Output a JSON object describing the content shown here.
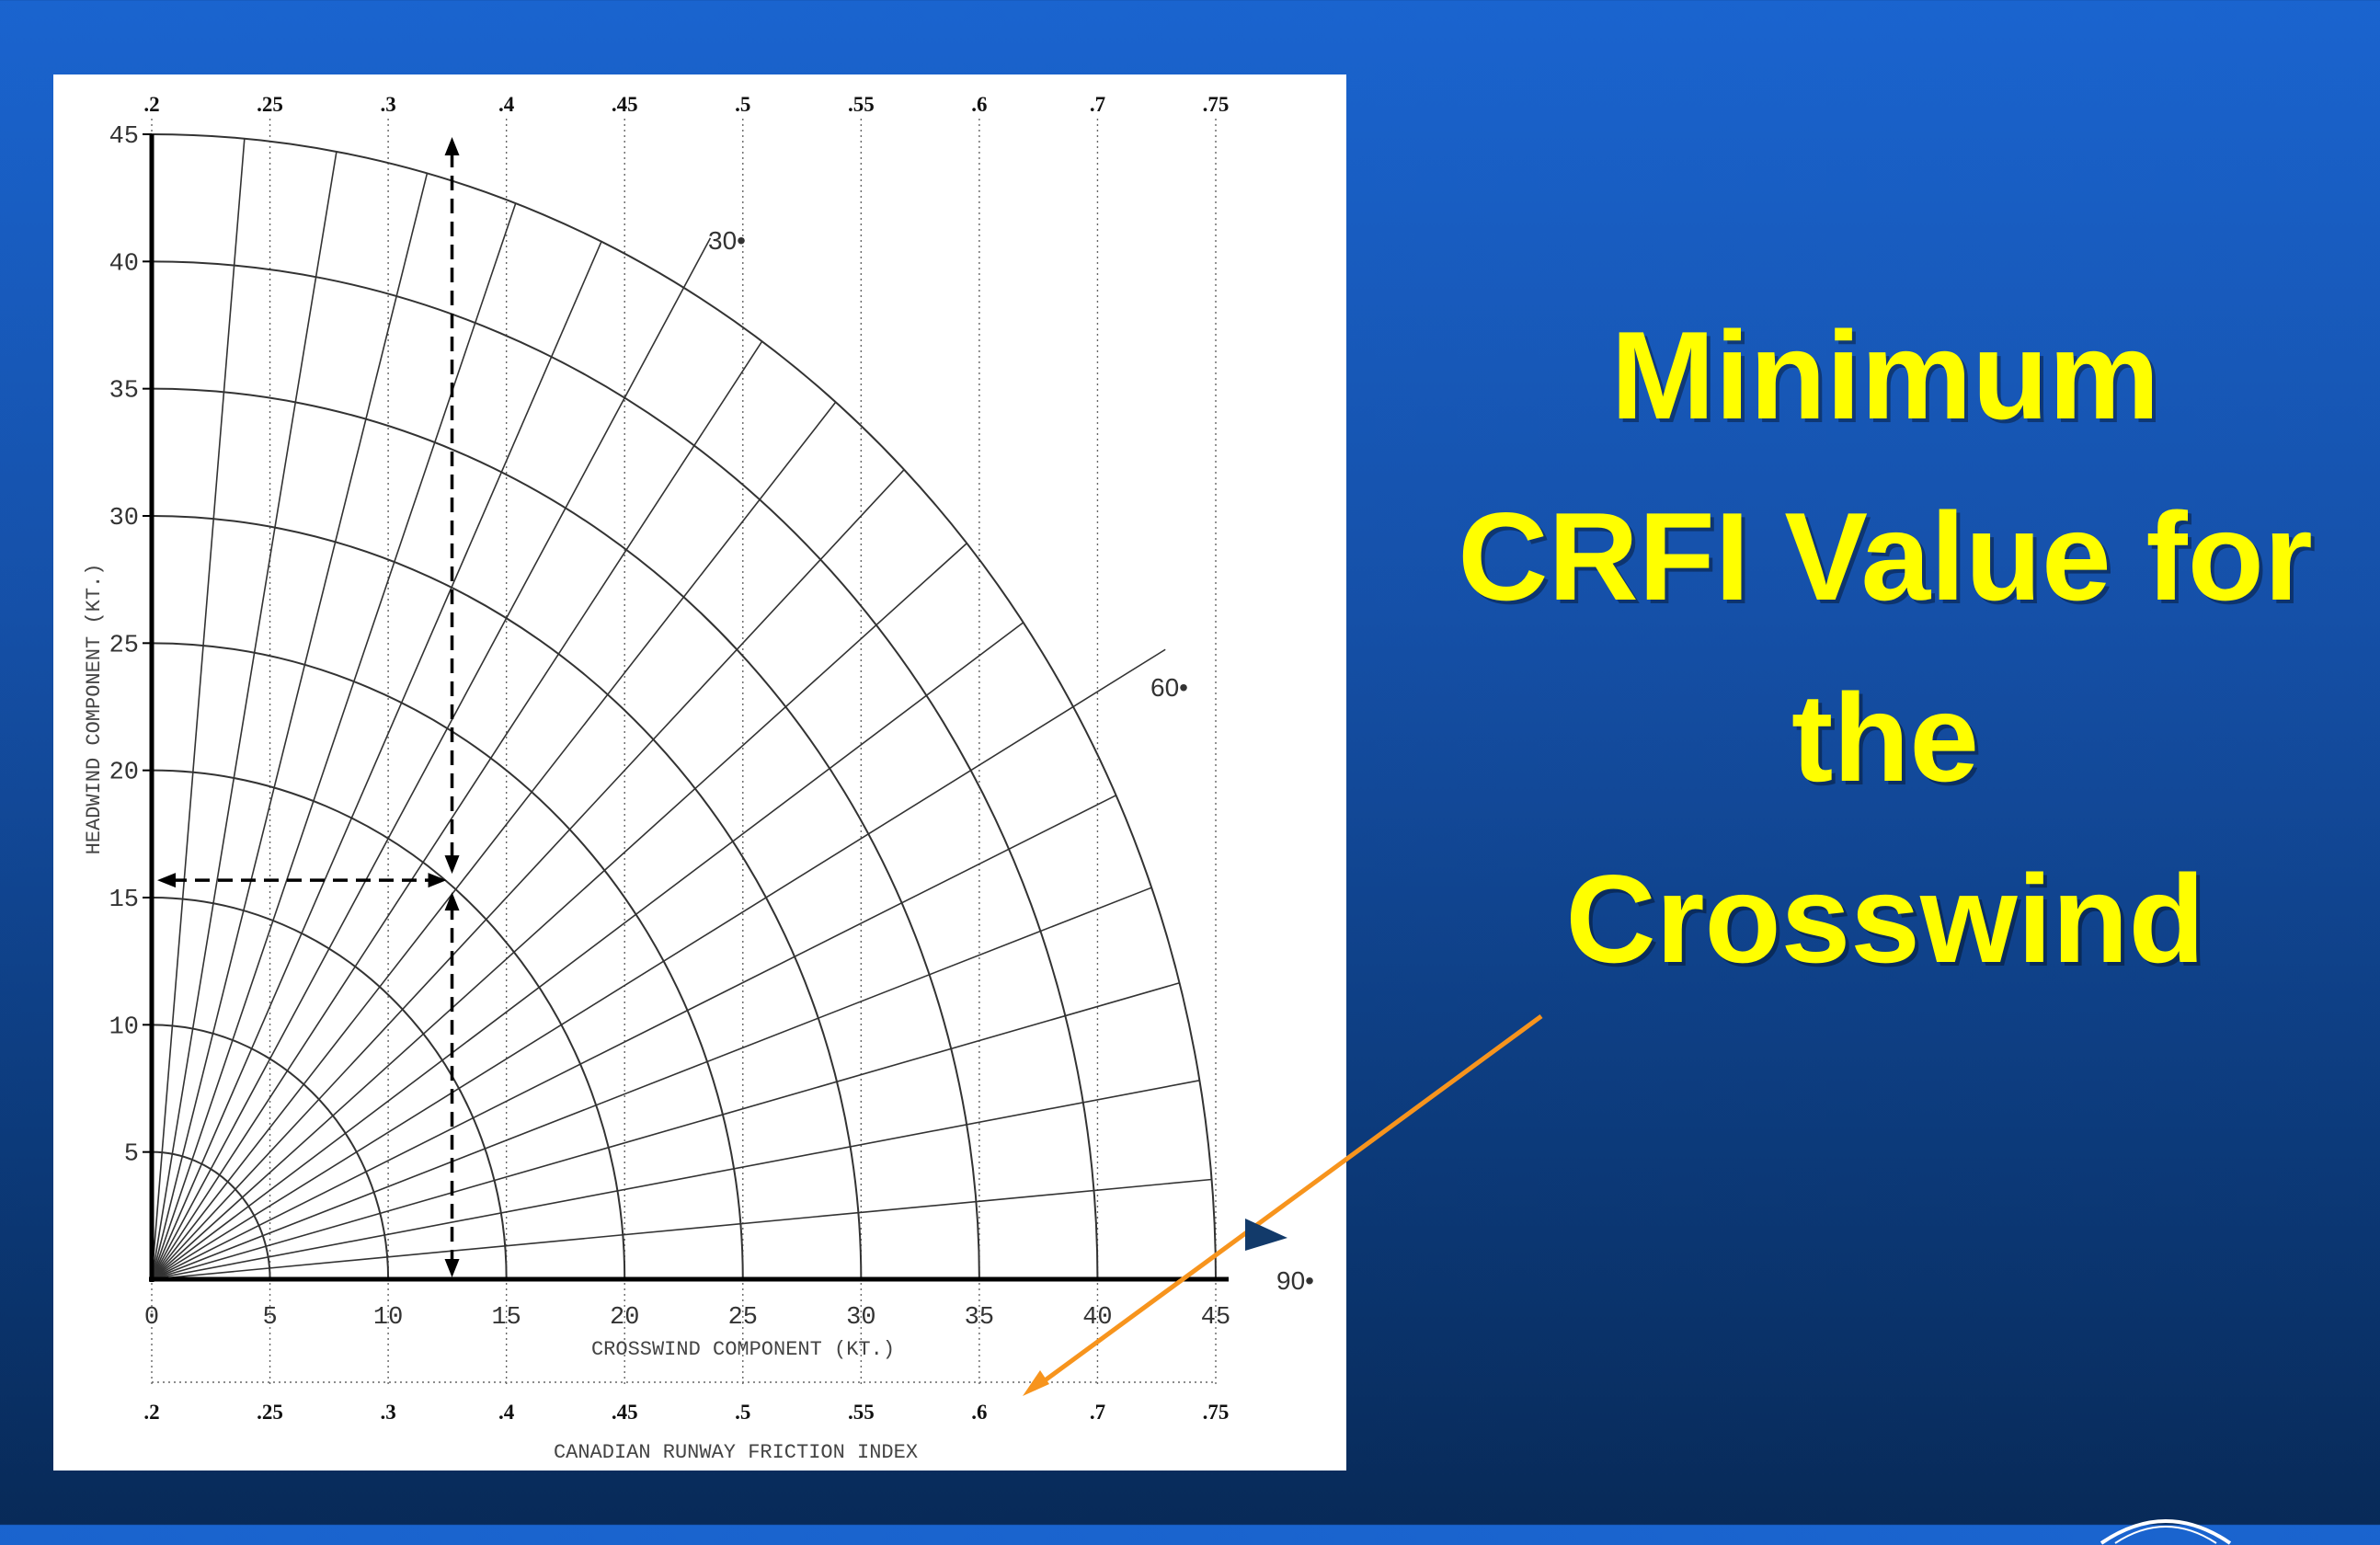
{
  "slide": {
    "title_lines": [
      "Minimum",
      "CRFI Value for",
      "the",
      "Crosswind"
    ],
    "title_color": "#ffff00",
    "arrow_color": "#f7941d",
    "marker_color": "#123a6a"
  },
  "chart_data": {
    "type": "crosswind-polar-chart",
    "xlabel": "CROSSWIND COMPONENT (KT.)",
    "ylabel": "HEADWIND COMPONENT (KT.)",
    "secondary_xlabel": "CANADIAN RUNWAY FRICTION INDEX",
    "x_ticks": [
      0,
      5,
      10,
      15,
      20,
      25,
      30,
      35,
      40,
      45
    ],
    "y_ticks": [
      5,
      10,
      15,
      20,
      25,
      30,
      35,
      40,
      45
    ],
    "xlim": [
      0,
      45
    ],
    "ylim": [
      0,
      45
    ],
    "crfi_labels": [
      ".2",
      ".25",
      ".3",
      ".4",
      ".45",
      ".5",
      ".55",
      ".6",
      ".7",
      ".75"
    ],
    "crfi_values": [
      0.2,
      0.25,
      0.3,
      0.4,
      0.45,
      0.5,
      0.55,
      0.6,
      0.7,
      0.75
    ],
    "crfi_positions_kt": [
      0,
      5,
      10,
      15,
      20,
      25,
      30,
      35,
      40,
      45
    ],
    "wind_speed_arcs_kt": [
      5,
      10,
      15,
      20,
      25,
      30,
      35,
      40,
      45
    ],
    "angle_lines_deg": [
      5,
      10,
      15,
      20,
      25,
      30,
      35,
      40,
      45,
      50,
      55,
      60,
      65,
      70,
      75,
      80,
      85
    ],
    "angle_labels": [
      "30•",
      "60•",
      "90•"
    ],
    "angle_label_degrees": [
      30,
      60,
      90
    ],
    "example": {
      "crosswind_kt": 12.7,
      "headwind_kt": 15.5,
      "note_line_to_headwind": true
    },
    "grid": true
  }
}
